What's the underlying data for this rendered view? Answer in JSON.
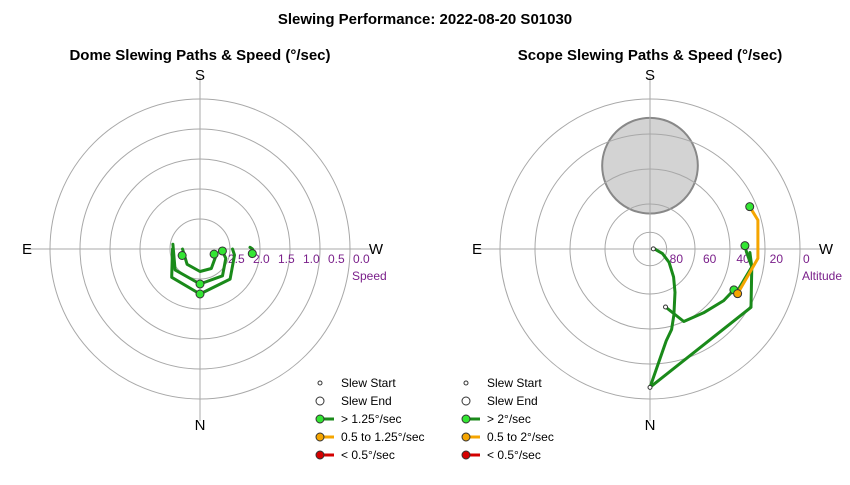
{
  "title": "Slewing Performance: 2022-08-20 S01030",
  "colors": {
    "fast": "#1a8a1a",
    "fast_marker": "#33e633",
    "medium": "#f5a500",
    "medium_marker": "#f5a500",
    "slow": "#d40000",
    "slow_marker": "#d40000",
    "grid": "#a8a8a8",
    "tick": "#7a1f8a",
    "moon_fill": "#d3d3d3",
    "moon_stroke": "#888888"
  },
  "chart_data": [
    {
      "type": "polar",
      "title": "Dome Slewing Paths & Speed (°/sec)",
      "compass": {
        "top": "S",
        "bottom": "N",
        "left": "E",
        "right": "W"
      },
      "radial_axis": {
        "label": "Speed",
        "range": [
          3.0,
          0.0
        ],
        "ticks": [
          "2.5",
          "2.0",
          "1.5",
          "1.0",
          "0.5",
          "0.0"
        ]
      },
      "paths": [
        {
          "speed_class": "fast",
          "points": [
            [
              270,
              2.45
            ],
            [
              225,
              2.2
            ],
            [
              180,
              2.1
            ],
            [
              135,
              2.15
            ],
            [
              100,
              2.3
            ],
            [
              90,
              2.35
            ]
          ]
        },
        {
          "speed_class": "fast",
          "points": [
            [
              280,
              2.45
            ],
            [
              230,
              2.35
            ],
            [
              180,
              2.3
            ],
            [
              140,
              2.3
            ],
            [
              110,
              2.45
            ],
            [
              95,
              2.55
            ]
          ]
        },
        {
          "speed_class": "fast",
          "points": [
            [
              270,
              2.65
            ],
            [
              220,
              2.6
            ],
            [
              180,
              2.55
            ],
            [
              150,
              2.55
            ],
            [
              120,
              2.65
            ],
            [
              110,
              2.7
            ]
          ]
        },
        {
          "speed_class": "fast",
          "points": [
            [
              95,
              1.95
            ],
            [
              90,
              1.95
            ],
            [
              88,
              2.0
            ]
          ]
        }
      ],
      "slew_ends": [
        [
          180,
          2.1
        ],
        [
          95,
          2.55
        ],
        [
          180,
          2.3
        ],
        [
          110,
          2.7
        ],
        [
          95,
          1.95
        ],
        [
          250,
          2.62
        ]
      ],
      "legend": [
        {
          "marker": "slew_start",
          "label": "Slew Start"
        },
        {
          "marker": "slew_end",
          "label": "Slew End"
        },
        {
          "marker": "fast",
          "label": "> 1.25°/sec"
        },
        {
          "marker": "medium",
          "label": "0.5 to 1.25°/sec"
        },
        {
          "marker": "slow",
          "label": "< 0.5°/sec"
        }
      ]
    },
    {
      "type": "polar",
      "title": "Scope Slewing Paths & Speed (°/sec)",
      "compass": {
        "top": "S",
        "bottom": "N",
        "left": "E",
        "right": "W"
      },
      "radial_axis": {
        "label": "Altitude",
        "range": [
          90,
          0
        ],
        "ticks": [
          "80",
          "60",
          "40",
          "20",
          "0"
        ]
      },
      "paths": [
        {
          "speed_class": "fast",
          "points": [
            [
              180,
              7
            ],
            [
              120,
              20
            ],
            [
              100,
              28
            ],
            [
              92,
              32
            ],
            [
              88,
              33
            ]
          ]
        },
        {
          "speed_class": "fast",
          "points": [
            [
              180,
              7
            ],
            [
              170,
              34
            ],
            [
              165,
              40
            ],
            [
              160,
              48
            ],
            [
              150,
              60
            ],
            [
              140,
              68
            ],
            [
              125,
              76
            ],
            [
              110,
              82
            ],
            [
              100,
              86
            ],
            [
              90,
              87
            ],
            [
              88,
              88
            ]
          ]
        },
        {
          "speed_class": "fast",
          "points": [
            [
              165,
              54
            ],
            [
              155,
              42
            ],
            [
              140,
              40
            ],
            [
              125,
              36
            ],
            [
              116,
              34
            ]
          ]
        },
        {
          "speed_class": "fast",
          "points": [
            [
              118,
              32
            ],
            [
              110,
              31
            ],
            [
              100,
              28
            ],
            [
              92,
              30
            ]
          ]
        },
        {
          "speed_class": "medium",
          "points": [
            [
              117,
              31
            ],
            [
              95,
              25
            ],
            [
              75,
              23
            ],
            [
              67,
              25
            ]
          ]
        }
      ],
      "slew_starts": [
        [
          180,
          7
        ],
        [
          165,
          54
        ],
        [
          88,
          88
        ]
      ],
      "slew_ends": [
        [
          88,
          33
        ],
        [
          116,
          34
        ],
        [
          117,
          31
        ],
        [
          67,
          25
        ]
      ],
      "moon": {
        "azimuth": 0,
        "altitude": 40,
        "radius_deg": 14
      },
      "legend": [
        {
          "marker": "slew_start",
          "label": "Slew Start"
        },
        {
          "marker": "slew_end",
          "label": "Slew End"
        },
        {
          "marker": "fast",
          "label": "> 2°/sec"
        },
        {
          "marker": "medium",
          "label": "0.5 to 2°/sec"
        },
        {
          "marker": "slow",
          "label": "< 0.5°/sec"
        }
      ]
    }
  ]
}
